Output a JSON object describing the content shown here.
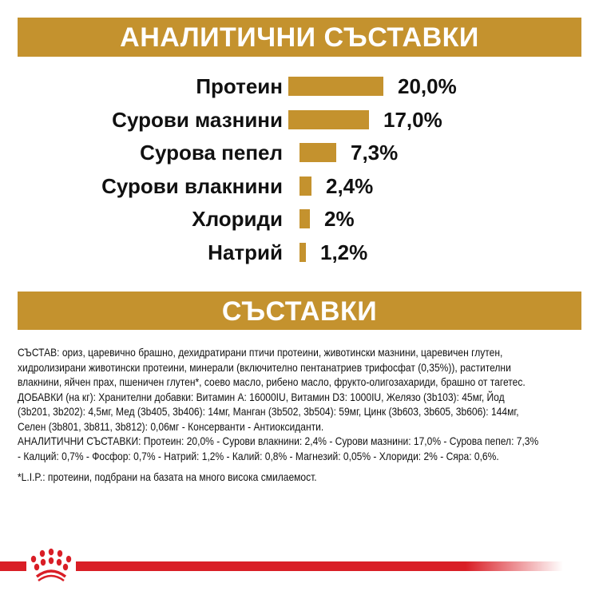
{
  "header": {
    "title": "АНАЛИТИЧНИ СЪСТАВКИ"
  },
  "chart_data": {
    "type": "bar",
    "orientation": "horizontal",
    "categories": [
      "Протеин",
      "Сурови мазнини",
      "Сурова пепел",
      "Сурови влакнини",
      "Хлориди",
      "Натрий"
    ],
    "values": [
      20.0,
      17.0,
      7.3,
      2.4,
      2,
      1.2
    ],
    "labels": [
      "20,0%",
      "17,0%",
      "7,3%",
      "2,4%",
      "2%",
      "1,2%"
    ],
    "unit": "%",
    "color": "#c4922e"
  },
  "section2": {
    "title": "СЪСТАВКИ"
  },
  "composition_lines": [
    "СЪСТАВ: ориз, царевично брашно, дехидратирани птичи протеини, животински мазнини, царевичен глутен,",
    "хидролизирани животински протеини, минерали (включително пентанатриев трифосфат (0,35%)), растителни",
    "влакнини, яйчен прах, пшеничен глутен*, соево масло, рибено масло, фрукто-олигозахариди, брашно от тагетес.",
    "ДОБАВКИ (на кг): Хранителни добавки: Витамин A: 16000IU, Витамин D3: 1000IU, Желязо (3b103): 45мг, Йод",
    "(3b201, 3b202): 4,5мг, Мед (3b405, 3b406): 14мг, Манган (3b502, 3b504): 59мг, Цинк (3b603, 3b605, 3b606): 144мг,",
    "Селен (3b801, 3b811, 3b812): 0,06мг - Консерванти - Антиоксиданти.",
    "АНАЛИТИЧНИ СЪСТАВКИ: Протеин: 20,0% - Сурови влакнини: 2,4% - Сурови мазнини: 17,0% - Сурова пепел: 7,3%",
    "- Калций: 0,7% - Фосфор: 0,7% - Натрий: 1,2% - Калий: 0,8% - Магнезий: 0,05% - Хлориди: 2% - Сяра: 0,6%."
  ],
  "footnote": "*L.I.P.: протеини, подбрани на базата на много висока смилаемост.",
  "brand": {
    "logo": "royal-canin-crown-icon",
    "color": "#d91e26"
  }
}
